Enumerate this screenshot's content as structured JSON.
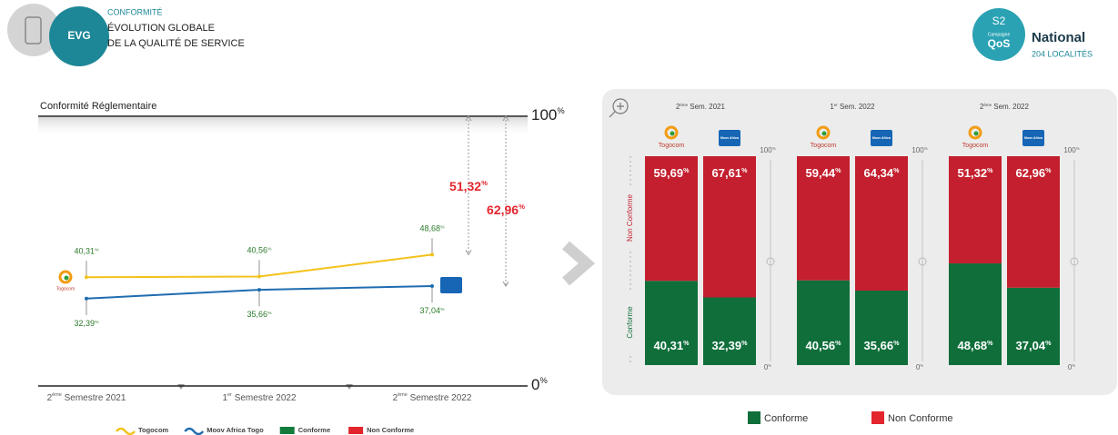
{
  "header": {
    "icon_label": "EVG",
    "kicker": "CONFORMITÉ",
    "title_lines": [
      "ÉVOLUTION GLOBALE",
      "DE LA QUALITÉ DE SERVICE"
    ]
  },
  "badge": {
    "semester": "S2",
    "campaign": "Campagne",
    "brand": "QoS",
    "scope": "National",
    "localities": "204 LOCALITÉS"
  },
  "chart_data": [
    {
      "type": "line",
      "title": "Conformité Réglementaire",
      "categories": [
        "2ème Semestre 2021",
        "1er Semestre 2022",
        "2ème Semestre 2022"
      ],
      "series": [
        {
          "name": "Togocom",
          "color": "#f3c21b",
          "values": [
            40.31,
            40.56,
            48.68
          ],
          "value_labels": [
            "40,31%",
            "40,56%",
            "48,68%"
          ]
        },
        {
          "name": "Moov Africa Togo",
          "color": "#1f6cb0",
          "values": [
            32.39,
            35.66,
            37.04
          ],
          "value_labels": [
            "32,39%",
            "35,66%",
            "37,04%"
          ]
        }
      ],
      "ylim": [
        0,
        100
      ],
      "yticks": [
        {
          "value": 0,
          "label": "0%"
        },
        {
          "value": 100,
          "label": "100%"
        }
      ],
      "annotations": [
        {
          "value": 51.32,
          "label": "51,32%",
          "color": "#e3262d"
        },
        {
          "value": 62.96,
          "label": "62,96%",
          "color": "#e3262d"
        }
      ],
      "legend_extra": [
        {
          "name": "Conforme",
          "color": "#137c3c"
        },
        {
          "name": "Non Conforme",
          "color": "#e3262d"
        }
      ]
    },
    {
      "type": "stacked_bar",
      "groups": [
        "2ème Sem. 2021",
        "1er Sem. 2022",
        "2ème Sem. 2022"
      ],
      "categories": [
        "Togocom",
        "Moov Africa",
        "Togocom",
        "Moov Africa",
        "Togocom",
        "Moov Africa"
      ],
      "series": [
        {
          "name": "Conforme",
          "color": "#0f6e3a",
          "values": [
            40.31,
            32.39,
            40.56,
            35.66,
            48.68,
            37.04
          ],
          "value_labels": [
            "40,31%",
            "32,39%",
            "40,56%",
            "35,66%",
            "48,68%",
            "37,04%"
          ]
        },
        {
          "name": "Non Conforme",
          "color": "#c41f2e",
          "values": [
            59.69,
            67.61,
            59.44,
            64.34,
            51.32,
            62.96
          ],
          "value_labels": [
            "59,69%",
            "67,61%",
            "59,44%",
            "64,34%",
            "51,32%",
            "62,96%"
          ]
        }
      ],
      "ylim": [
        0,
        100
      ],
      "yticks": [
        {
          "value": 0,
          "label": "0%"
        },
        {
          "value": 100,
          "label": "100%"
        }
      ]
    }
  ]
}
